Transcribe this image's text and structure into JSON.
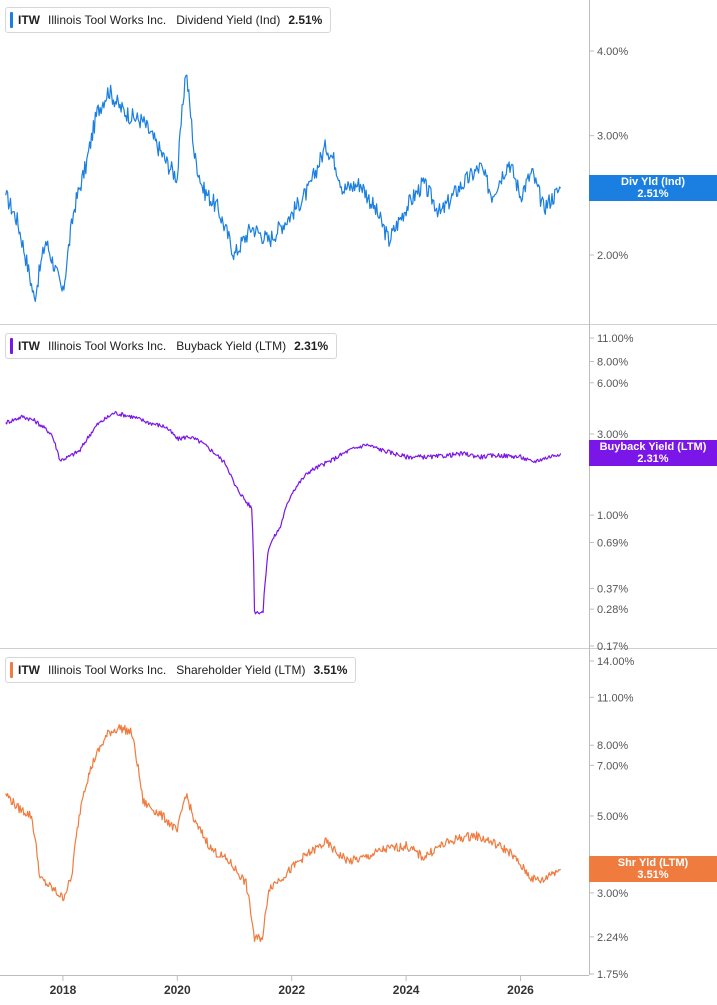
{
  "chart_data": [
    {
      "type": "line",
      "ticker": "ITW",
      "company": "Illinois Tool Works Inc.",
      "metric": "Dividend Yield (Ind)",
      "current_value": "2.51%",
      "tag_label": "Div Yld (Ind)",
      "color": "#1a7fe0",
      "y_scale": "log",
      "y_ticks": [
        "4.00%",
        "3.00%",
        "2.00%"
      ],
      "x": [
        2017.0,
        2017.2,
        2017.5,
        2017.7,
        2018.0,
        2018.2,
        2018.4,
        2018.6,
        2018.8,
        2019.0,
        2019.2,
        2019.4,
        2019.6,
        2019.8,
        2020.0,
        2020.15,
        2020.3,
        2020.45,
        2020.7,
        2021.0,
        2021.3,
        2021.6,
        2022.0,
        2022.3,
        2022.6,
        2022.75,
        2022.9,
        2023.2,
        2023.5,
        2023.7,
        2024.0,
        2024.3,
        2024.6,
        2024.9,
        2025.1,
        2025.3,
        2025.5,
        2025.8,
        2026.0,
        2026.2,
        2026.4,
        2026.5,
        2026.7
      ],
      "values": [
        2.45,
        2.25,
        1.72,
        2.1,
        1.75,
        2.35,
        2.7,
        3.25,
        3.5,
        3.3,
        3.2,
        3.15,
        2.95,
        2.75,
        2.6,
        3.75,
        2.8,
        2.5,
        2.35,
        2.0,
        2.2,
        2.1,
        2.3,
        2.5,
        2.9,
        2.75,
        2.5,
        2.55,
        2.3,
        2.1,
        2.35,
        2.55,
        2.3,
        2.5,
        2.6,
        2.7,
        2.45,
        2.75,
        2.45,
        2.65,
        2.35,
        2.4,
        2.51
      ]
    },
    {
      "type": "line",
      "ticker": "ITW",
      "company": "Illinois Tool Works Inc.",
      "metric": "Buyback Yield (LTM)",
      "current_value": "2.31%",
      "tag_label": "Buyback Yield (LTM)",
      "color": "#7b16e8",
      "y_scale": "log",
      "y_ticks": [
        "11.00%",
        "8.00%",
        "6.00%",
        "3.00%",
        "1.00%",
        "0.69%",
        "0.37%",
        "0.28%",
        "0.17%"
      ],
      "x": [
        2017.0,
        2017.3,
        2017.5,
        2017.8,
        2017.95,
        2018.1,
        2018.3,
        2018.6,
        2018.9,
        2019.2,
        2019.5,
        2019.8,
        2020.0,
        2020.2,
        2020.4,
        2020.6,
        2020.85,
        2021.0,
        2021.2,
        2021.3,
        2021.35,
        2021.5,
        2021.6,
        2021.8,
        2022.0,
        2022.3,
        2022.7,
        2023.0,
        2023.3,
        2023.6,
        2024.0,
        2024.5,
        2025.0,
        2025.3,
        2025.6,
        2026.0,
        2026.2,
        2026.4,
        2026.5,
        2026.7
      ],
      "values": [
        3.5,
        3.8,
        3.6,
        3.0,
        2.1,
        2.2,
        2.4,
        3.4,
        4.0,
        3.8,
        3.5,
        3.3,
        2.8,
        2.9,
        2.7,
        2.4,
        2.0,
        1.5,
        1.2,
        1.1,
        0.27,
        0.27,
        0.65,
        0.85,
        1.35,
        1.8,
        2.1,
        2.4,
        2.6,
        2.4,
        2.2,
        2.2,
        2.3,
        2.2,
        2.25,
        2.2,
        2.05,
        2.15,
        2.2,
        2.31
      ]
    },
    {
      "type": "line",
      "ticker": "ITW",
      "company": "Illinois Tool Works Inc.",
      "metric": "Shareholder Yield (LTM)",
      "current_value": "3.51%",
      "tag_label": "Shr Yld (LTM)",
      "color": "#f07b3f",
      "y_scale": "log",
      "y_ticks": [
        "14.00%",
        "11.00%",
        "8.00%",
        "7.00%",
        "5.00%",
        "3.00%",
        "2.24%",
        "1.75%"
      ],
      "x": [
        2017.0,
        2017.2,
        2017.45,
        2017.6,
        2017.8,
        2018.0,
        2018.15,
        2018.35,
        2018.55,
        2018.8,
        2019.0,
        2019.2,
        2019.4,
        2019.6,
        2019.8,
        2020.0,
        2020.15,
        2020.3,
        2020.6,
        2020.9,
        2021.2,
        2021.35,
        2021.5,
        2021.6,
        2021.9,
        2022.2,
        2022.6,
        2022.8,
        2023.0,
        2023.3,
        2023.6,
        2024.0,
        2024.3,
        2024.6,
        2024.9,
        2025.2,
        2025.5,
        2025.8,
        2026.0,
        2026.2,
        2026.4,
        2026.5,
        2026.7
      ],
      "values": [
        5.8,
        5.3,
        5.0,
        3.3,
        3.1,
        2.9,
        3.3,
        5.8,
        7.3,
        8.7,
        9.0,
        8.7,
        5.5,
        5.2,
        4.9,
        4.5,
        5.8,
        4.8,
        4.0,
        3.7,
        3.2,
        2.2,
        2.25,
        3.1,
        3.4,
        3.8,
        4.2,
        3.9,
        3.7,
        3.8,
        4.0,
        4.1,
        3.8,
        4.1,
        4.3,
        4.4,
        4.2,
        3.95,
        3.6,
        3.3,
        3.25,
        3.4,
        3.51
      ]
    }
  ],
  "x_axis": {
    "min": 2016.9,
    "max": 2026.9,
    "ticks": [
      "2018",
      "2020",
      "2022",
      "2024",
      "2026"
    ]
  }
}
